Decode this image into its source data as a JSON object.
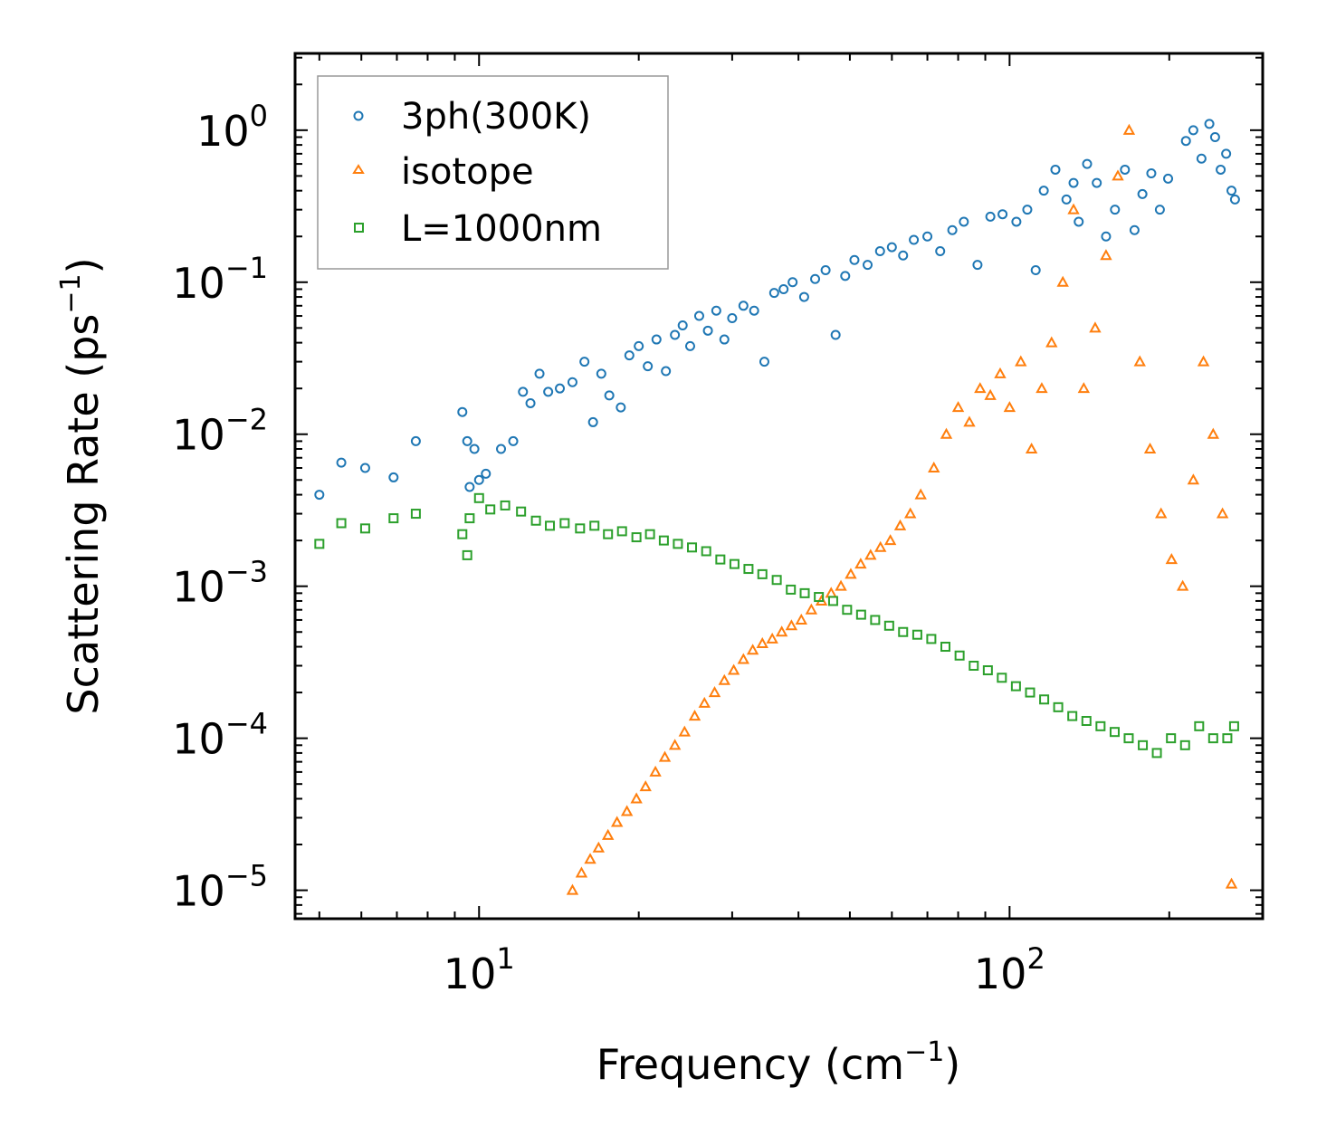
{
  "chart_data": {
    "type": "scatter",
    "xscale": "log",
    "yscale": "log",
    "xlim": [
      4.5,
      300
    ],
    "ylim": [
      6.5e-06,
      3.2
    ],
    "xlabel": "Frequency (cm",
    "xlabel_sup": "−1",
    "xlabel_end": ")",
    "ylabel": "Scattering Rate (ps",
    "ylabel_sup": "−1",
    "ylabel_end": ")",
    "x_ticks": [
      {
        "value": 10,
        "base": "10",
        "exp": "1"
      },
      {
        "value": 100,
        "base": "10",
        "exp": "2"
      }
    ],
    "y_ticks": [
      {
        "value": 1,
        "base": "10",
        "exp": "0"
      },
      {
        "value": 0.1,
        "base": "10",
        "exp": "−1"
      },
      {
        "value": 0.01,
        "base": "10",
        "exp": "−2"
      },
      {
        "value": 0.001,
        "base": "10",
        "exp": "−3"
      },
      {
        "value": 0.0001,
        "base": "10",
        "exp": "−4"
      },
      {
        "value": 1e-05,
        "base": "10",
        "exp": "−5"
      }
    ],
    "legend_position": "top-left",
    "series": [
      {
        "name": "3ph(300K)",
        "marker": "circle",
        "color": "#1f77b4",
        "x": [
          5.0,
          5.5,
          6.1,
          6.9,
          7.6,
          9.3,
          9.5,
          9.6,
          9.8,
          10.0,
          10.3,
          11.0,
          11.6,
          12.1,
          12.5,
          13.0,
          13.5,
          14.2,
          15.0,
          15.8,
          16.4,
          17.0,
          17.6,
          18.5,
          19.2,
          20.0,
          20.8,
          21.6,
          22.5,
          23.4,
          24.2,
          25.0,
          26.0,
          27.0,
          28.0,
          29.0,
          30.0,
          31.5,
          33.0,
          34.5,
          36.0,
          37.5,
          39.0,
          41.0,
          43.0,
          45.0,
          47.0,
          49.0,
          51.0,
          54.0,
          57.0,
          60.0,
          63.0,
          66.0,
          70.0,
          74.0,
          78.0,
          82.0,
          87.0,
          92.0,
          97.0,
          103.0,
          108.0,
          112.0,
          116.0,
          122.0,
          128.0,
          132.0,
          135.0,
          140.0,
          146.0,
          152.0,
          158.0,
          165.0,
          172.0,
          178.0,
          185.0,
          192.0,
          199.0,
          215.0,
          222.0,
          230.0,
          238.0,
          244.0,
          250.0,
          256.0,
          262.0,
          266.0
        ],
        "y": [
          0.004,
          0.0065,
          0.006,
          0.0052,
          0.009,
          0.014,
          0.009,
          0.0045,
          0.008,
          0.005,
          0.0055,
          0.008,
          0.009,
          0.019,
          0.016,
          0.025,
          0.019,
          0.02,
          0.022,
          0.03,
          0.012,
          0.025,
          0.018,
          0.015,
          0.033,
          0.038,
          0.028,
          0.042,
          0.026,
          0.045,
          0.052,
          0.038,
          0.06,
          0.048,
          0.065,
          0.042,
          0.058,
          0.07,
          0.065,
          0.03,
          0.085,
          0.09,
          0.1,
          0.08,
          0.105,
          0.12,
          0.045,
          0.11,
          0.14,
          0.13,
          0.16,
          0.17,
          0.15,
          0.19,
          0.2,
          0.16,
          0.22,
          0.25,
          0.13,
          0.27,
          0.28,
          0.25,
          0.3,
          0.12,
          0.4,
          0.55,
          0.35,
          0.45,
          0.25,
          0.6,
          0.45,
          0.2,
          0.3,
          0.55,
          0.22,
          0.38,
          0.52,
          0.3,
          0.48,
          0.85,
          1.0,
          0.65,
          1.1,
          0.9,
          0.55,
          0.7,
          0.4,
          0.35
        ]
      },
      {
        "name": "isotope",
        "marker": "triangle",
        "color": "#ff7f0e",
        "x": [
          15.0,
          15.6,
          16.2,
          16.8,
          17.5,
          18.2,
          19.0,
          19.8,
          20.6,
          21.5,
          22.4,
          23.4,
          24.4,
          25.5,
          26.6,
          27.8,
          29.0,
          30.2,
          31.5,
          32.8,
          34.2,
          35.7,
          37.2,
          38.8,
          40.5,
          42.3,
          44.2,
          46.1,
          48.1,
          50.2,
          52.4,
          54.7,
          57.1,
          59.6,
          62.2,
          65.0,
          68.0,
          72.0,
          76.0,
          80.0,
          84.0,
          88.0,
          92.0,
          96.0,
          100.0,
          105.0,
          110.0,
          115.0,
          120.0,
          126.0,
          132.0,
          138.0,
          145.0,
          152.0,
          160.0,
          168.0,
          176.0,
          184.0,
          193.0,
          202.0,
          212.0,
          222.0,
          232.0,
          242.0,
          252.0,
          262.0
        ],
        "y": [
          1e-05,
          1.3e-05,
          1.6e-05,
          1.9e-05,
          2.3e-05,
          2.8e-05,
          3.3e-05,
          4e-05,
          4.8e-05,
          6e-05,
          7.5e-05,
          9e-05,
          0.00011,
          0.00014,
          0.00017,
          0.0002,
          0.00024,
          0.00028,
          0.00033,
          0.00038,
          0.00042,
          0.00045,
          0.0005,
          0.00055,
          0.0006,
          0.0007,
          0.0008,
          0.0009,
          0.001,
          0.0012,
          0.0014,
          0.0016,
          0.0018,
          0.002,
          0.0025,
          0.003,
          0.004,
          0.006,
          0.01,
          0.015,
          0.012,
          0.02,
          0.018,
          0.025,
          0.015,
          0.03,
          0.008,
          0.02,
          0.04,
          0.1,
          0.3,
          0.02,
          0.05,
          0.15,
          0.5,
          1.0,
          0.03,
          0.008,
          0.003,
          0.0015,
          0.001,
          0.005,
          0.03,
          0.01,
          0.003,
          1.1e-05
        ]
      },
      {
        "name": "L=1000nm",
        "marker": "square",
        "color": "#2ca02c",
        "x": [
          5.0,
          5.5,
          6.1,
          6.9,
          7.6,
          9.3,
          9.5,
          9.6,
          10.0,
          10.5,
          11.2,
          12.0,
          12.8,
          13.6,
          14.5,
          15.5,
          16.5,
          17.5,
          18.6,
          19.8,
          21.0,
          22.3,
          23.7,
          25.2,
          26.8,
          28.5,
          30.3,
          32.2,
          34.2,
          36.4,
          38.7,
          41.1,
          43.7,
          46.5,
          49.4,
          52.5,
          55.8,
          59.3,
          63.0,
          67.0,
          71.2,
          75.7,
          80.5,
          85.6,
          91.0,
          96.7,
          102.8,
          109.3,
          116.2,
          123.5,
          131.3,
          139.6,
          148.4,
          157.8,
          167.7,
          178.3,
          189.5,
          201.5,
          214.2,
          227.7,
          242.0,
          257.3,
          265.0
        ],
        "y": [
          0.0019,
          0.0026,
          0.0024,
          0.0028,
          0.003,
          0.0022,
          0.0016,
          0.0028,
          0.0038,
          0.0032,
          0.0034,
          0.0031,
          0.0027,
          0.0025,
          0.0026,
          0.0024,
          0.0025,
          0.0022,
          0.0023,
          0.0021,
          0.0022,
          0.002,
          0.0019,
          0.0018,
          0.0017,
          0.0015,
          0.0014,
          0.0013,
          0.0012,
          0.0011,
          0.00095,
          0.0009,
          0.00085,
          0.0008,
          0.0007,
          0.00065,
          0.0006,
          0.00055,
          0.0005,
          0.00048,
          0.00045,
          0.0004,
          0.00035,
          0.0003,
          0.00028,
          0.00025,
          0.00022,
          0.0002,
          0.00018,
          0.00016,
          0.00014,
          0.00013,
          0.00012,
          0.00011,
          0.0001,
          9e-05,
          8e-05,
          0.0001,
          9e-05,
          0.00012,
          0.0001,
          0.0001,
          0.00012
        ]
      }
    ]
  }
}
